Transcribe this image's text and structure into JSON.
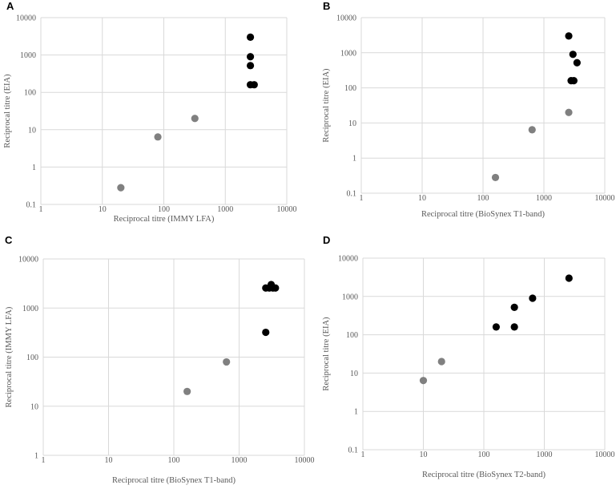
{
  "chart_data": [
    {
      "type": "scatter",
      "panel": "A",
      "xscale": "log",
      "yscale": "log",
      "xlim": [
        1,
        10000
      ],
      "ylim": [
        0.1,
        10000
      ],
      "xticks": [
        "1",
        "10",
        "100",
        "1000",
        "10000"
      ],
      "yticks": [
        "0.1",
        "1",
        "10",
        "100",
        "1000",
        "10000"
      ],
      "xlabel": "Reciprocal titre (IMMY LFA)",
      "ylabel": "Reciprocal titre (EIA)",
      "series": [
        {
          "name": "grey",
          "color": "#808080",
          "points": [
            [
              20,
              0.28
            ],
            [
              80,
              6.4
            ],
            [
              320,
              20
            ]
          ]
        },
        {
          "name": "black",
          "color": "#000000",
          "points": [
            [
              2560,
              3000
            ],
            [
              2560,
              900
            ],
            [
              2560,
              520
            ],
            [
              2560,
              160
            ],
            [
              2950,
              160
            ]
          ]
        }
      ]
    },
    {
      "type": "scatter",
      "panel": "B",
      "xscale": "log",
      "yscale": "log",
      "xlim": [
        1,
        10000
      ],
      "ylim": [
        0.1,
        10000
      ],
      "xticks": [
        "1",
        "10",
        "100",
        "1000",
        "10000"
      ],
      "yticks": [
        "0.1",
        "1",
        "10",
        "100",
        "1000",
        "10000"
      ],
      "xlabel": "Reciprocal titre (BioSynex T1-band)",
      "ylabel": "Reciprocal titre (EIA)",
      "series": [
        {
          "name": "grey",
          "color": "#808080",
          "points": [
            [
              160,
              0.28
            ],
            [
              640,
              6.4
            ],
            [
              2560,
              20
            ]
          ]
        },
        {
          "name": "black",
          "color": "#000000",
          "points": [
            [
              2560,
              3000
            ],
            [
              3000,
              900
            ],
            [
              3500,
              520
            ],
            [
              2800,
              160
            ],
            [
              3100,
              160
            ]
          ]
        }
      ]
    },
    {
      "type": "scatter",
      "panel": "C",
      "xscale": "log",
      "yscale": "log",
      "xlim": [
        1,
        10000
      ],
      "ylim": [
        1,
        10000
      ],
      "xticks": [
        "1",
        "10",
        "100",
        "1000",
        "10000"
      ],
      "yticks": [
        "1",
        "10",
        "100",
        "1000",
        "10000"
      ],
      "xlabel": "Reciprocal titre (BioSynex T1-band)",
      "ylabel": "Reciprocal titre (IMMY LFA)",
      "series": [
        {
          "name": "grey",
          "color": "#808080",
          "points": [
            [
              160,
              20
            ],
            [
              640,
              80
            ]
          ]
        },
        {
          "name": "black",
          "color": "#000000",
          "points": [
            [
              2560,
              320
            ],
            [
              2560,
              2560
            ],
            [
              2900,
              2560
            ],
            [
              3100,
              3000
            ],
            [
              3300,
              2560
            ],
            [
              3600,
              2560
            ]
          ]
        }
      ]
    },
    {
      "type": "scatter",
      "panel": "D",
      "xscale": "log",
      "yscale": "log",
      "xlim": [
        1,
        10000
      ],
      "ylim": [
        0.1,
        10000
      ],
      "xticks": [
        "1",
        "10",
        "100",
        "1000",
        "10000"
      ],
      "yticks": [
        "0.1",
        "1",
        "10",
        "100",
        "1000",
        "10000"
      ],
      "xlabel": "Reciprocal titre (BioSynex T2-band)",
      "ylabel": "Reciprocal titre (EIA)",
      "series": [
        {
          "name": "grey",
          "color": "#808080",
          "points": [
            [
              10,
              6.4
            ],
            [
              20,
              20
            ]
          ]
        },
        {
          "name": "black",
          "color": "#000000",
          "points": [
            [
              160,
              160
            ],
            [
              320,
              160
            ],
            [
              320,
              520
            ],
            [
              640,
              900
            ],
            [
              2560,
              3000
            ]
          ]
        }
      ]
    }
  ]
}
